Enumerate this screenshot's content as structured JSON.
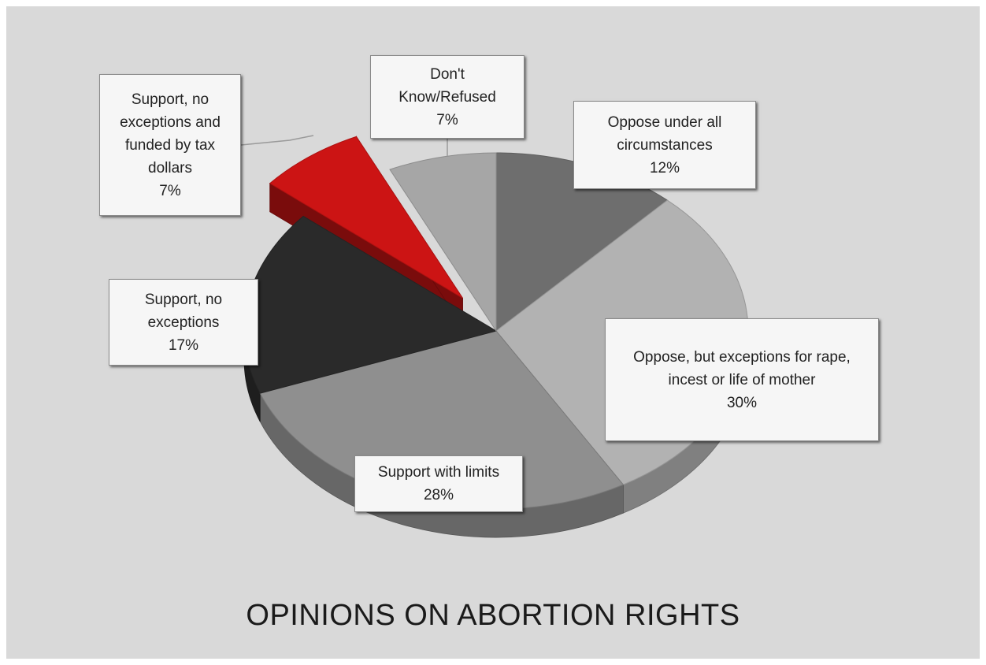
{
  "chart_data": {
    "type": "pie",
    "title": "OPINIONS ON ABORTION RIGHTS",
    "slices": [
      {
        "label": "Oppose under all circumstances",
        "value": 12,
        "value_label": "12%",
        "color": "#6e6e6e"
      },
      {
        "label": "Oppose, but exceptions for rape, incest or life of mother",
        "value": 30,
        "value_label": "30%",
        "color": "#b2b2b2"
      },
      {
        "label": "Support with limits",
        "value": 28,
        "value_label": "28%",
        "color": "#8f8f8f"
      },
      {
        "label": "Support, no exceptions",
        "value": 17,
        "value_label": "17%",
        "color": "#2a2a2a"
      },
      {
        "label": "Support, no exceptions and funded by tax dollars",
        "value": 7,
        "value_label": "7%",
        "color": "#cc1414",
        "exploded": true
      },
      {
        "label": "Don't Know/Refused",
        "value": 7,
        "value_label": "7%",
        "color": "#a6a6a6"
      }
    ],
    "legend": "none",
    "style": "3d-exploded-pie"
  },
  "labels": {
    "oppose_all": [
      "Oppose under all",
      "circumstances",
      "12%"
    ],
    "oppose_exceptions": [
      "Oppose, but exceptions for rape,",
      "incest or life of mother",
      "30%"
    ],
    "support_limits": [
      "Support with limits",
      "28%"
    ],
    "support_no_exceptions": [
      "Support, no",
      "exceptions",
      "17%"
    ],
    "support_funded": [
      "Support, no",
      "exceptions and",
      "funded by tax",
      "dollars",
      "7%"
    ],
    "dont_know": [
      "Don't",
      "Know/Refused",
      "7%"
    ]
  }
}
